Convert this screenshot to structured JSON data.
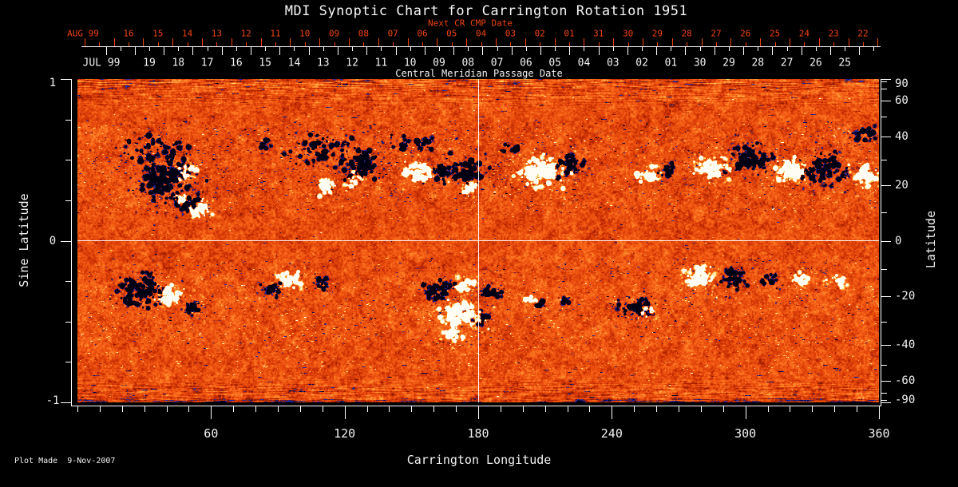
{
  "title": "MDI Synoptic Chart for Carrington Rotation 1951",
  "credit": "Plot Made  9-Nov-2007",
  "colors": {
    "background": "#000000",
    "text": "#f2f2f2",
    "red_axis": "#f2430f",
    "axis_line": "#ffffff",
    "quiet_sun": "#e8490c",
    "negative_polarity": "#0a0a3c",
    "positive_polarity": "#fffbe8"
  },
  "top_axis": {
    "next_cr_label": "Next CR CMP Date",
    "axis_title": "Central Meridian Passage Date",
    "red_year_label": "AUG 99",
    "white_year_label": "JUL 99",
    "red_day_labels": [
      "16",
      "15",
      "14",
      "13",
      "12",
      "11",
      "10",
      "09",
      "08",
      "07",
      "06",
      "05",
      "04",
      "03",
      "02",
      "01",
      "31",
      "30",
      "29",
      "28",
      "27",
      "26",
      "25",
      "24",
      "23",
      "22"
    ],
    "white_day_labels": [
      "19",
      "18",
      "17",
      "16",
      "15",
      "14",
      "13",
      "12",
      "11",
      "10",
      "09",
      "08",
      "07",
      "06",
      "05",
      "04",
      "03",
      "02",
      "01",
      "30",
      "29",
      "28",
      "27",
      "26",
      "25"
    ]
  },
  "chart_data": {
    "type": "heatmap",
    "title": "MDI Synoptic Chart for Carrington Rotation 1951",
    "xlabel": "Carrington Longitude",
    "ylabel_left": "Sine Latitude",
    "ylabel_right": "Latitude",
    "xlim": [
      0,
      360
    ],
    "x_major_ticks": [
      60,
      120,
      180,
      240,
      300,
      360
    ],
    "x_minor_step_deg": 10,
    "left_axis_ticks": [
      "1",
      "0",
      "-1"
    ],
    "left_axis_tick_values": [
      1,
      0,
      -1
    ],
    "left_axis_minor_values": [
      0.75,
      0.5,
      0.25,
      -0.25,
      -0.5,
      -0.75
    ],
    "right_axis_ticks": [
      "90",
      "60",
      "40",
      "20",
      "0",
      "-20",
      "-40",
      "-60",
      "-90"
    ],
    "right_axis_tick_values": [
      90,
      60,
      40,
      20,
      0,
      -20,
      -40,
      -60,
      -90
    ],
    "right_axis_minor_values": [
      80,
      70,
      50,
      30,
      10,
      -10,
      -30,
      -50,
      -70,
      -80
    ],
    "y_scale": "sine-latitude",
    "crosshair": {
      "longitude": 180,
      "latitude": 0
    },
    "colormap_description": "negative polarity = dark navy/blue-black, quiet sun = mottled orange-red, positive polarity = yellow-white",
    "activity_regions": [
      {
        "lon": 39.5,
        "sinlat": 0.383,
        "rlon": 14.0,
        "rsin": 0.15,
        "polarity": "negative",
        "density": 0.8
      },
      {
        "lon": 48.5,
        "sinlat": 0.432,
        "rlon": 4.5,
        "rsin": 0.055,
        "polarity": "positive",
        "density": 1.0
      },
      {
        "lon": 46.0,
        "sinlat": 0.259,
        "rlon": 3.5,
        "rsin": 0.045,
        "polarity": "positive",
        "density": 1.0
      },
      {
        "lon": 55.0,
        "sinlat": 0.195,
        "rlon": 5.0,
        "rsin": 0.06,
        "polarity": "positive",
        "density": 1.2
      },
      {
        "lon": 50.0,
        "sinlat": 0.21,
        "rlon": 5.5,
        "rsin": 0.06,
        "polarity": "negative",
        "density": 1.0
      },
      {
        "lon": 34.0,
        "sinlat": 0.58,
        "rlon": 18.0,
        "rsin": 0.09,
        "polarity": "negative",
        "density": 0.3
      },
      {
        "lon": 84.0,
        "sinlat": 0.605,
        "rlon": 3.0,
        "rsin": 0.04,
        "polarity": "negative",
        "density": 0.8
      },
      {
        "lon": 108.0,
        "sinlat": 0.556,
        "rlon": 12.5,
        "rsin": 0.1,
        "polarity": "negative",
        "density": 0.45
      },
      {
        "lon": 111.0,
        "sinlat": 0.333,
        "rlon": 4.5,
        "rsin": 0.06,
        "polarity": "positive",
        "density": 1.0
      },
      {
        "lon": 127.0,
        "sinlat": 0.481,
        "rlon": 9.0,
        "rsin": 0.09,
        "polarity": "negative",
        "density": 0.9
      },
      {
        "lon": 124.0,
        "sinlat": 0.368,
        "rlon": 3.5,
        "rsin": 0.05,
        "polarity": "positive",
        "density": 1.0
      },
      {
        "lon": 152.5,
        "sinlat": 0.432,
        "rlon": 7.0,
        "rsin": 0.075,
        "polarity": "positive",
        "density": 1.0
      },
      {
        "lon": 151.0,
        "sinlat": 0.605,
        "rlon": 14.0,
        "rsin": 0.05,
        "polarity": "negative",
        "density": 0.35
      },
      {
        "lon": 163.0,
        "sinlat": 0.417,
        "rlon": 4.5,
        "rsin": 0.055,
        "polarity": "negative",
        "density": 1.0
      },
      {
        "lon": 174.0,
        "sinlat": 0.442,
        "rlon": 9.0,
        "rsin": 0.09,
        "polarity": "negative",
        "density": 0.9
      },
      {
        "lon": 176.0,
        "sinlat": 0.319,
        "rlon": 3.5,
        "rsin": 0.05,
        "polarity": "positive",
        "density": 1.1
      },
      {
        "lon": 208.0,
        "sinlat": 0.432,
        "rlon": 11.0,
        "rsin": 0.1,
        "polarity": "positive",
        "density": 1.0
      },
      {
        "lon": 220.0,
        "sinlat": 0.467,
        "rlon": 7.0,
        "rsin": 0.075,
        "polarity": "negative",
        "density": 0.9
      },
      {
        "lon": 196.0,
        "sinlat": 0.565,
        "rlon": 5.5,
        "rsin": 0.04,
        "polarity": "negative",
        "density": 0.5
      },
      {
        "lon": 257.0,
        "sinlat": 0.407,
        "rlon": 5.5,
        "rsin": 0.05,
        "polarity": "positive",
        "density": 1.0
      },
      {
        "lon": 264.5,
        "sinlat": 0.442,
        "rlon": 4.5,
        "rsin": 0.04,
        "polarity": "negative",
        "density": 1.0
      },
      {
        "lon": 285.0,
        "sinlat": 0.457,
        "rlon": 8.0,
        "rsin": 0.08,
        "polarity": "positive",
        "density": 1.0
      },
      {
        "lon": 301.5,
        "sinlat": 0.506,
        "rlon": 9.0,
        "rsin": 0.09,
        "polarity": "negative",
        "density": 1.0
      },
      {
        "lon": 319.5,
        "sinlat": 0.432,
        "rlon": 8.0,
        "rsin": 0.08,
        "polarity": "positive",
        "density": 1.1
      },
      {
        "lon": 335.5,
        "sinlat": 0.457,
        "rlon": 10.0,
        "rsin": 0.1,
        "polarity": "negative",
        "density": 1.0
      },
      {
        "lon": 353.5,
        "sinlat": 0.407,
        "rlon": 7.0,
        "rsin": 0.07,
        "polarity": "positive",
        "density": 1.1
      },
      {
        "lon": 354.5,
        "sinlat": 0.664,
        "rlon": 6.5,
        "rsin": 0.05,
        "polarity": "negative",
        "density": 0.8
      },
      {
        "lon": 28.5,
        "sinlat": -0.31,
        "rlon": 11.0,
        "rsin": 0.11,
        "polarity": "negative",
        "density": 0.9
      },
      {
        "lon": 41.5,
        "sinlat": -0.333,
        "rlon": 6.5,
        "rsin": 0.07,
        "polarity": "positive",
        "density": 1.1
      },
      {
        "lon": 51.5,
        "sinlat": -0.412,
        "rlon": 4.5,
        "rsin": 0.04,
        "polarity": "negative",
        "density": 1.0
      },
      {
        "lon": 87.0,
        "sinlat": -0.294,
        "rlon": 4.5,
        "rsin": 0.05,
        "polarity": "negative",
        "density": 1.0
      },
      {
        "lon": 95.0,
        "sinlat": -0.235,
        "rlon": 6.5,
        "rsin": 0.06,
        "polarity": "positive",
        "density": 1.0
      },
      {
        "lon": 109.5,
        "sinlat": -0.264,
        "rlon": 4.5,
        "rsin": 0.04,
        "polarity": "negative",
        "density": 1.0
      },
      {
        "lon": 161.5,
        "sinlat": -0.31,
        "rlon": 7.0,
        "rsin": 0.075,
        "polarity": "negative",
        "density": 0.9
      },
      {
        "lon": 172.0,
        "sinlat": -0.457,
        "rlon": 10.0,
        "rsin": 0.08,
        "polarity": "positive",
        "density": 1.2
      },
      {
        "lon": 175.0,
        "sinlat": -0.275,
        "rlon": 5.5,
        "rsin": 0.05,
        "polarity": "positive",
        "density": 1.0
      },
      {
        "lon": 168.0,
        "sinlat": -0.58,
        "rlon": 5.5,
        "rsin": 0.05,
        "polarity": "positive",
        "density": 1.0
      },
      {
        "lon": 185.5,
        "sinlat": -0.315,
        "rlon": 6.5,
        "rsin": 0.04,
        "polarity": "negative",
        "density": 0.9
      },
      {
        "lon": 181.0,
        "sinlat": -0.48,
        "rlon": 4.0,
        "rsin": 0.045,
        "polarity": "negative",
        "density": 1.0
      },
      {
        "lon": 203.0,
        "sinlat": -0.358,
        "rlon": 3.0,
        "rsin": 0.03,
        "polarity": "positive",
        "density": 1.0
      },
      {
        "lon": 207.0,
        "sinlat": -0.39,
        "rlon": 3.0,
        "rsin": 0.025,
        "polarity": "negative",
        "density": 1.0
      },
      {
        "lon": 219.5,
        "sinlat": -0.373,
        "rlon": 3.0,
        "rsin": 0.025,
        "polarity": "negative",
        "density": 1.0
      },
      {
        "lon": 251.0,
        "sinlat": -0.407,
        "rlon": 8.0,
        "rsin": 0.06,
        "polarity": "negative",
        "density": 0.9
      },
      {
        "lon": 255.5,
        "sinlat": -0.447,
        "rlon": 3.5,
        "rsin": 0.035,
        "polarity": "positive",
        "density": 1.0
      },
      {
        "lon": 280.0,
        "sinlat": -0.21,
        "rlon": 8.0,
        "rsin": 0.07,
        "polarity": "positive",
        "density": 1.1
      },
      {
        "lon": 294.0,
        "sinlat": -0.235,
        "rlon": 7.0,
        "rsin": 0.07,
        "polarity": "negative",
        "density": 0.9
      },
      {
        "lon": 310.5,
        "sinlat": -0.235,
        "rlon": 5.5,
        "rsin": 0.05,
        "polarity": "negative",
        "density": 0.8
      },
      {
        "lon": 325.0,
        "sinlat": -0.244,
        "rlon": 4.5,
        "rsin": 0.045,
        "polarity": "positive",
        "density": 1.0
      },
      {
        "lon": 341.0,
        "sinlat": -0.259,
        "rlon": 4.5,
        "rsin": 0.04,
        "polarity": "positive",
        "density": 1.0
      }
    ]
  }
}
